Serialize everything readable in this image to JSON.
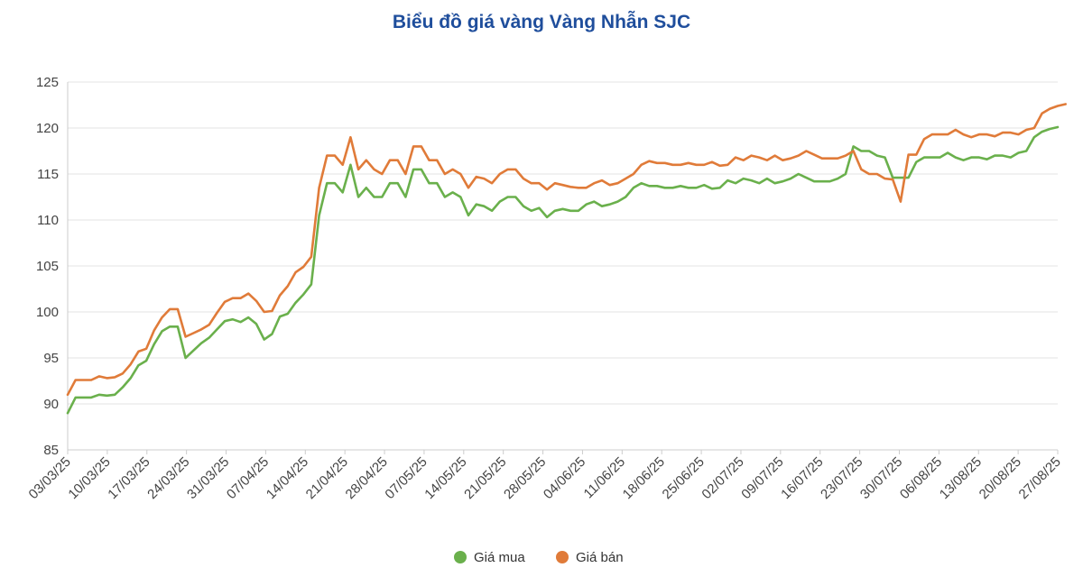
{
  "chart_data": {
    "type": "line",
    "title": "Biểu đồ giá vàng Vàng Nhẫn SJC",
    "xlabel": "",
    "ylabel": "",
    "ylim": [
      85,
      125
    ],
    "yticks": [
      85,
      90,
      95,
      100,
      105,
      110,
      115,
      120,
      125
    ],
    "grid": true,
    "legend_position": "bottom-center",
    "x_labels": [
      "03/03/25",
      "10/03/25",
      "17/03/25",
      "24/03/25",
      "31/03/25",
      "07/04/25",
      "14/04/25",
      "21/04/25",
      "28/04/25",
      "07/05/25",
      "14/05/25",
      "21/05/25",
      "28/05/25",
      "04/06/25",
      "11/06/25",
      "18/06/25",
      "25/06/25",
      "02/07/25",
      "09/07/25",
      "16/07/25",
      "23/07/25",
      "30/07/25",
      "06/08/25",
      "13/08/25",
      "20/08/25",
      "27/08/25"
    ],
    "series": [
      {
        "name": "Giá mua",
        "color": "#6ab04c",
        "values": [
          89.0,
          90.7,
          90.7,
          90.7,
          91.0,
          90.9,
          91.0,
          91.8,
          92.8,
          94.2,
          94.7,
          96.5,
          97.9,
          98.4,
          98.4,
          95.0,
          95.8,
          96.6,
          97.2,
          98.1,
          99.0,
          99.2,
          98.9,
          99.4,
          98.7,
          97.0,
          97.6,
          99.5,
          99.8,
          101.0,
          101.9,
          103.0,
          110.5,
          114.0,
          114.0,
          113.0,
          116.0,
          112.5,
          113.5,
          112.5,
          112.5,
          114.0,
          114.0,
          112.5,
          115.5,
          115.5,
          114.0,
          114.0,
          112.5,
          113.0,
          112.5,
          110.5,
          111.7,
          111.5,
          111.0,
          112.0,
          112.5,
          112.5,
          111.5,
          111.0,
          111.3,
          110.3,
          111.0,
          111.2,
          111.0,
          111.0,
          111.7,
          112.0,
          111.5,
          111.7,
          112.0,
          112.5,
          113.5,
          114.0,
          113.7,
          113.7,
          113.5,
          113.5,
          113.7,
          113.5,
          113.5,
          113.8,
          113.4,
          113.5,
          114.3,
          114.0,
          114.5,
          114.3,
          114.0,
          114.5,
          114.0,
          114.2,
          114.5,
          115.0,
          114.6,
          114.2,
          114.2,
          114.2,
          114.5,
          115.0,
          118.0,
          117.5,
          117.5,
          117.0,
          116.8,
          114.6,
          114.6,
          114.6,
          116.3,
          116.8,
          116.8,
          116.8,
          117.3,
          116.8,
          116.5,
          116.8,
          116.8,
          116.6,
          117.0,
          117.0,
          116.8,
          117.3,
          117.5,
          119.0,
          119.6,
          119.9,
          120.1
        ]
      },
      {
        "name": "Giá bán",
        "color": "#e07b39",
        "values": [
          91.0,
          92.6,
          92.6,
          92.6,
          93.0,
          92.8,
          92.9,
          93.3,
          94.3,
          95.7,
          96.0,
          98.0,
          99.4,
          100.3,
          100.3,
          97.3,
          97.7,
          98.1,
          98.6,
          99.9,
          101.1,
          101.5,
          101.5,
          102.0,
          101.2,
          100.0,
          100.1,
          101.8,
          102.8,
          104.3,
          104.9,
          106.0,
          113.5,
          117.0,
          117.0,
          116.0,
          119.0,
          115.5,
          116.5,
          115.5,
          115.0,
          116.5,
          116.5,
          115.0,
          118.0,
          118.0,
          116.5,
          116.5,
          115.0,
          115.5,
          115.0,
          113.5,
          114.7,
          114.5,
          114.0,
          115.0,
          115.5,
          115.5,
          114.5,
          114.0,
          114.0,
          113.3,
          114.0,
          113.8,
          113.6,
          113.5,
          113.5,
          114.0,
          114.3,
          113.8,
          114.0,
          114.5,
          115.0,
          116.0,
          116.4,
          116.2,
          116.2,
          116.0,
          116.0,
          116.2,
          116.0,
          116.0,
          116.3,
          115.9,
          116.0,
          116.8,
          116.5,
          117.0,
          116.8,
          116.5,
          117.0,
          116.5,
          116.7,
          117.0,
          117.5,
          117.1,
          116.7,
          116.7,
          116.7,
          117.0,
          117.5,
          115.5,
          115.0,
          115.0,
          114.5,
          114.4,
          112.0,
          117.1,
          117.1,
          118.8,
          119.3,
          119.3,
          119.3,
          119.8,
          119.3,
          119.0,
          119.3,
          119.3,
          119.1,
          119.5,
          119.5,
          119.3,
          119.8,
          120.0,
          121.6,
          122.1,
          122.4,
          122.6
        ]
      }
    ]
  }
}
